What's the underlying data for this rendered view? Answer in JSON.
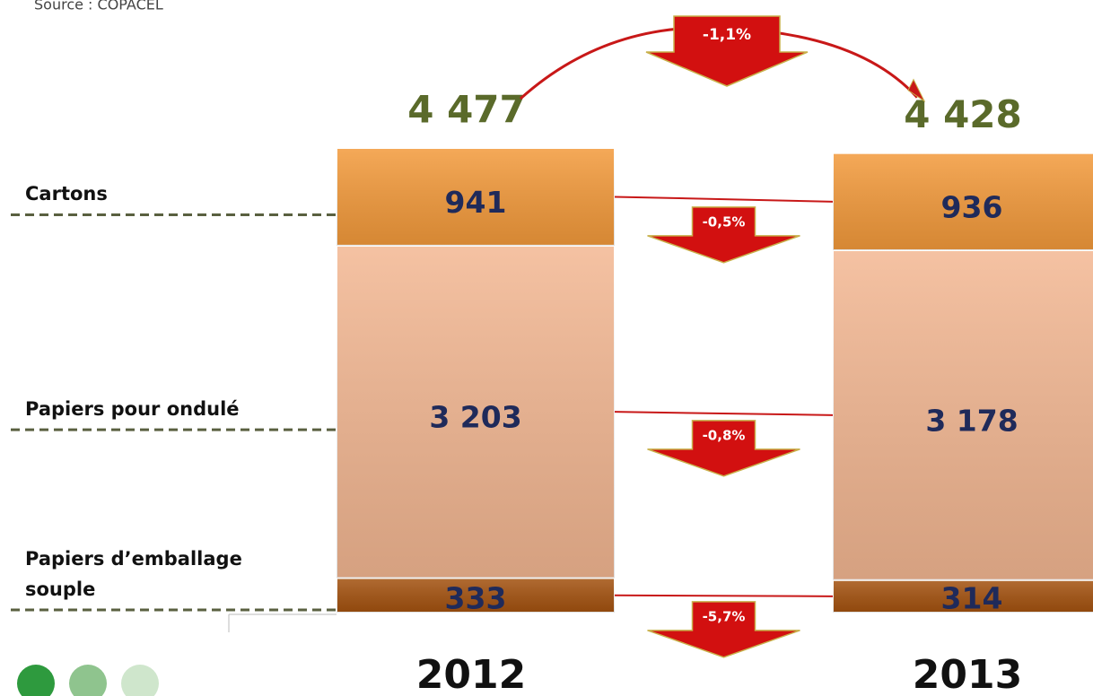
{
  "chart_data": {
    "type": "stacked_bar",
    "source": "Source : COPACEL",
    "categories": [
      "2012",
      "2013"
    ],
    "totals": [
      4477,
      4428
    ],
    "total_labels": [
      "4 477",
      "4 428"
    ],
    "total_change": {
      "value": -1.1,
      "label": "-1,1%"
    },
    "series": [
      {
        "name": "Papiers d’emballage souple",
        "color": "#a4520f",
        "values": [
          333,
          314
        ],
        "value_labels": [
          "333",
          "314"
        ],
        "change": {
          "value": -5.7,
          "label": "-5,7%"
        }
      },
      {
        "name": "Papiers pour ondulé",
        "color": "#f3b792",
        "values": [
          3203,
          3178
        ],
        "value_labels": [
          "3 203",
          "3 178"
        ],
        "change": {
          "value": -0.8,
          "label": "-0,8%"
        }
      },
      {
        "name": "Cartons",
        "color": "#f39a3b",
        "values": [
          941,
          936
        ],
        "value_labels": [
          "941",
          "936"
        ],
        "change": {
          "value": -0.5,
          "label": "-0,5%"
        }
      }
    ]
  }
}
